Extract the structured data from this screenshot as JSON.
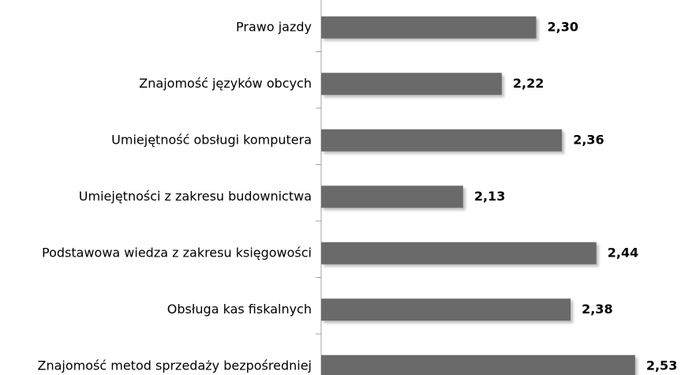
{
  "chart_data": {
    "type": "bar",
    "orientation": "horizontal",
    "categories": [
      "Prawo jazdy",
      "Znajomość języków obcych",
      "Umiejętność obsługi komputera",
      "Umiejętności z zakresu budownictwa",
      "Podstawowa wiedza z zakresu księgowości",
      "Obsługa kas fiskalnych",
      "Znajomość metod sprzedaży bezpośredniej"
    ],
    "values": [
      2.3,
      2.22,
      2.36,
      2.13,
      2.44,
      2.38,
      2.53
    ],
    "value_labels": [
      "2,30",
      "2,22",
      "2,36",
      "2,13",
      "2,44",
      "2,38",
      "2,53"
    ],
    "color": "#6b6b6b",
    "xlim": [
      1.8,
      2.6
    ]
  }
}
